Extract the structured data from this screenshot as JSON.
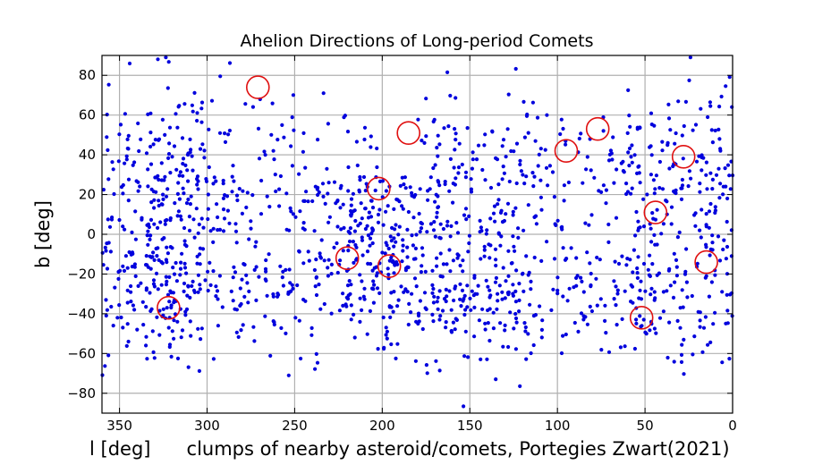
{
  "chart_data": {
    "type": "scatter",
    "title": "Ahelion Directions of Long-period Comets",
    "xlabel": "l [deg]      clumps of nearby asteroid/comets, Portegies Zwart(2021)",
    "ylabel": "b [deg]",
    "xlim": [
      360,
      0
    ],
    "ylim": [
      -90,
      90
    ],
    "x_reversed": true,
    "grid": true,
    "x_ticks": [
      350,
      300,
      250,
      200,
      150,
      100,
      50,
      0
    ],
    "y_ticks": [
      -80,
      -60,
      -40,
      -20,
      0,
      20,
      40,
      60,
      80
    ],
    "x_tick_labels": [
      "350",
      "300",
      "250",
      "200",
      "150",
      "100",
      "50",
      "0"
    ],
    "y_tick_labels": [
      "−80",
      "−60",
      "−40",
      "−20",
      "0",
      "20",
      "40",
      "60",
      "80"
    ],
    "series": [
      {
        "marker": "dot",
        "color": "#0000dd",
        "points": []
      },
      {
        "marker": "open-circle",
        "color": "#e01010",
        "points": [
          [
            271,
            74
          ],
          [
            185,
            51
          ],
          [
            77,
            53
          ],
          [
            95,
            42
          ],
          [
            28,
            39
          ],
          [
            202,
            23
          ],
          [
            44,
            11
          ],
          [
            220,
            -12
          ],
          [
            196,
            -16
          ],
          [
            15,
            -14
          ],
          [
            322,
            -37
          ],
          [
            52,
            -42
          ]
        ]
      }
    ]
  }
}
